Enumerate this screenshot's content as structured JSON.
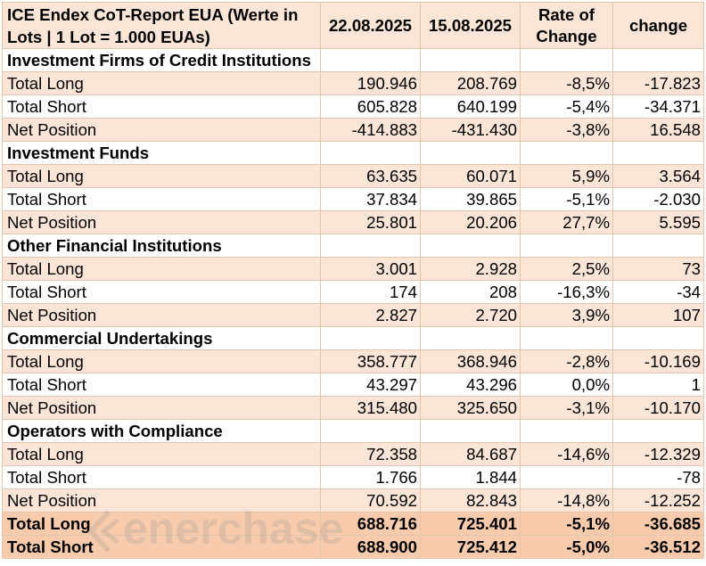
{
  "header": {
    "title": "ICE Endex CoT-Report EUA (Werte in Lots | 1 Lot = 1.000 EUAs)",
    "col1": "22.08.2025",
    "col2": "15.08.2025",
    "col3": "Rate of Change",
    "col4": "change"
  },
  "sections": [
    {
      "name": "Investment Firms of Credit Institutions",
      "rows": [
        {
          "label": "Total Long",
          "v1": "190.946",
          "v2": "208.769",
          "rate": "-8,5%",
          "change": "-17.823"
        },
        {
          "label": "Total Short",
          "v1": "605.828",
          "v2": "640.199",
          "rate": "-5,4%",
          "change": "-34.371"
        },
        {
          "label": "Net Position",
          "v1": "-414.883",
          "v2": "-431.430",
          "rate": "-3,8%",
          "change": "16.548"
        }
      ]
    },
    {
      "name": "Investment Funds",
      "rows": [
        {
          "label": "Total Long",
          "v1": "63.635",
          "v2": "60.071",
          "rate": "5,9%",
          "change": "3.564"
        },
        {
          "label": "Total Short",
          "v1": "37.834",
          "v2": "39.865",
          "rate": "-5,1%",
          "change": "-2.030"
        },
        {
          "label": "Net Position",
          "v1": "25.801",
          "v2": "20.206",
          "rate": "27,7%",
          "change": "5.595"
        }
      ]
    },
    {
      "name": "Other Financial Institutions",
      "rows": [
        {
          "label": "Total Long",
          "v1": "3.001",
          "v2": "2.928",
          "rate": "2,5%",
          "change": "73"
        },
        {
          "label": "Total Short",
          "v1": "174",
          "v2": "208",
          "rate": "-16,3%",
          "change": "-34"
        },
        {
          "label": "Net Position",
          "v1": "2.827",
          "v2": "2.720",
          "rate": "3,9%",
          "change": "107"
        }
      ]
    },
    {
      "name": "Commercial Undertakings",
      "rows": [
        {
          "label": "Total Long",
          "v1": "358.777",
          "v2": "368.946",
          "rate": "-2,8%",
          "change": "-10.169"
        },
        {
          "label": "Total Short",
          "v1": "43.297",
          "v2": "43.296",
          "rate": "0,0%",
          "change": "1"
        },
        {
          "label": "Net Position",
          "v1": "315.480",
          "v2": "325.650",
          "rate": "-3,1%",
          "change": "-10.170"
        }
      ]
    },
    {
      "name": "Operators with Compliance",
      "rows": [
        {
          "label": "Total Long",
          "v1": "72.358",
          "v2": "84.687",
          "rate": "-14,6%",
          "change": "-12.329"
        },
        {
          "label": "Total Short",
          "v1": "1.766",
          "v2": "1.844",
          "rate": "",
          "change": "-78"
        },
        {
          "label": "Net Position",
          "v1": "70.592",
          "v2": "82.843",
          "rate": "-14,8%",
          "change": "-12.252"
        }
      ]
    }
  ],
  "totals": [
    {
      "label": "Total Long",
      "v1": "688.716",
      "v2": "725.401",
      "rate": "-5,1%",
      "change": "-36.685"
    },
    {
      "label": "Total Short",
      "v1": "688.900",
      "v2": "725.412",
      "rate": "-5,0%",
      "change": "-36.512"
    }
  ],
  "watermark": {
    "text": "enerchase"
  },
  "colors": {
    "header_bg": "#fbe5d6",
    "tint_bg": "#fbe5d6",
    "total_bg": "#f8cbad",
    "border": "#e2c5ad"
  }
}
